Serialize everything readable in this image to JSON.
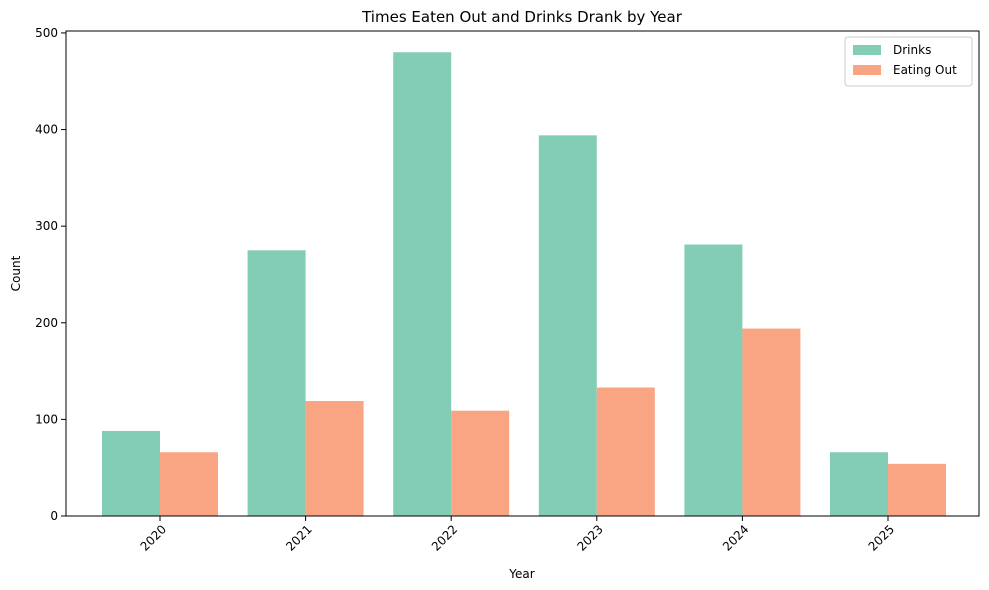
{
  "chart_data": {
    "type": "bar",
    "title": "Times Eaten Out and Drinks Drank by Year",
    "xlabel": "Year",
    "ylabel": "Count",
    "categories": [
      "2020",
      "2021",
      "2022",
      "2023",
      "2024",
      "2025"
    ],
    "series": [
      {
        "name": "Drinks",
        "color": "#83cdb6",
        "values": [
          88,
          275,
          480,
          394,
          281,
          66
        ]
      },
      {
        "name": "Eating Out",
        "color": "#f9a584",
        "values": [
          66,
          119,
          109,
          133,
          194,
          54
        ]
      }
    ],
    "ylim": [
      0,
      502
    ],
    "yticks": [
      0,
      100,
      200,
      300,
      400,
      500
    ],
    "xtick_rotation": 45,
    "grid": false,
    "legend_position": "top-right"
  }
}
